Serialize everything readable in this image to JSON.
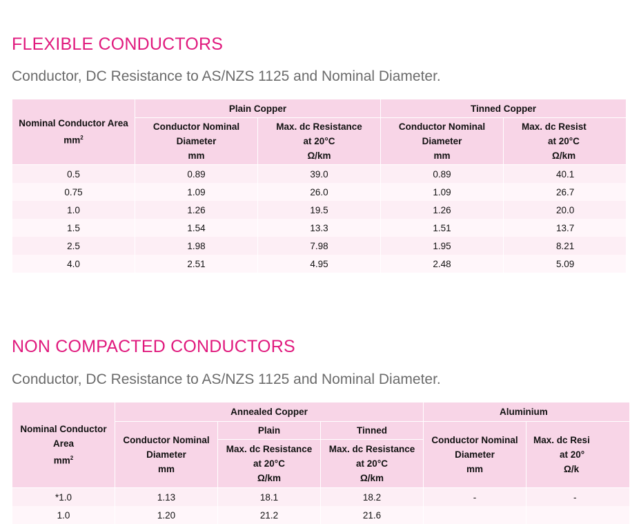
{
  "section1": {
    "title": "FLEXIBLE CONDUCTORS",
    "subtitle": "Conductor, DC Resistance to AS/NZS 1125 and Nominal Diameter.",
    "table": {
      "area_header": [
        "Nominal Conductor Area",
        "mm",
        "2"
      ],
      "groups": [
        "Plain Copper",
        "Tinned Copper"
      ],
      "diameter_header": [
        "Conductor Nominal",
        "Diameter",
        "mm"
      ],
      "resistance_header": [
        "Max. dc Resistance",
        "at 20°C",
        "Ω/km"
      ],
      "resistance_header_clipped": [
        "Max. dc Resist",
        "at 20°C",
        "Ω/km"
      ],
      "rows": [
        [
          "0.5",
          "0.89",
          "39.0",
          "0.89",
          "40.1"
        ],
        [
          "0.75",
          "1.09",
          "26.0",
          "1.09",
          "26.7"
        ],
        [
          "1.0",
          "1.26",
          "19.5",
          "1.26",
          "20.0"
        ],
        [
          "1.5",
          "1.54",
          "13.3",
          "1.51",
          "13.7"
        ],
        [
          "2.5",
          "1.98",
          "7.98",
          "1.95",
          "8.21"
        ],
        [
          "4.0",
          "2.51",
          "4.95",
          "2.48",
          "5.09"
        ]
      ]
    }
  },
  "section2": {
    "title": "NON COMPACTED CONDUCTORS",
    "subtitle": "Conductor, DC Resistance to AS/NZS 1125 and Nominal Diameter.",
    "table": {
      "area_header": [
        "Nominal Conductor",
        "Area",
        "mm",
        "2"
      ],
      "groups": [
        "Annealed Copper",
        "Aluminium"
      ],
      "subgroups": [
        "Plain",
        "Tinned"
      ],
      "diameter_header": [
        "Conductor Nominal",
        "Diameter",
        "mm"
      ],
      "resistance_header": [
        "Max. dc Resistance",
        "at 20°C",
        "Ω/km"
      ],
      "resistance_header_clipped": [
        "Max. dc Resi",
        "at 20°",
        "Ω/k"
      ],
      "rows": [
        [
          "*1.0",
          "1.13",
          "18.1",
          "18.2",
          "-",
          "-"
        ],
        [
          "1.0",
          "1.20",
          "21.2",
          "21.6",
          "",
          ""
        ]
      ]
    }
  }
}
